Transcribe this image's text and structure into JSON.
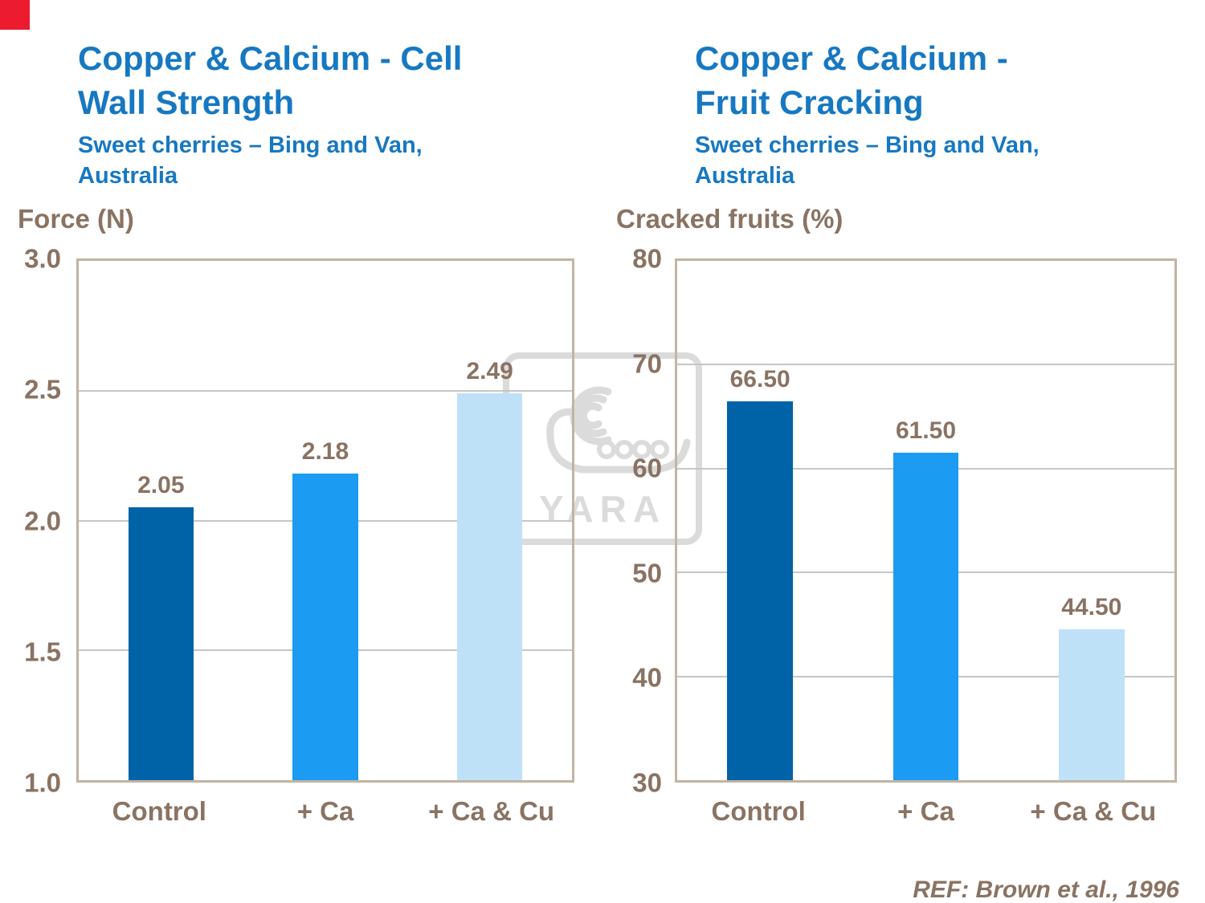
{
  "page": {
    "ref_text": "REF: Brown et al., 1996",
    "watermark_text": "YARA",
    "accent_red": "#ED1B2F",
    "title_color": "#1778C2",
    "text_color": "#8A7363"
  },
  "chart_data": [
    {
      "type": "bar",
      "title_line1": "Copper & Calcium - Cell",
      "title_line2": "Wall Strength",
      "subtitle_line1": "Sweet cherries – Bing and Van,",
      "subtitle_line2": "Australia",
      "axis_label": "Force (N)",
      "categories": [
        "Control",
        "+ Ca",
        "+ Ca & Cu"
      ],
      "values": [
        2.05,
        2.18,
        2.49
      ],
      "value_labels": [
        "2.05",
        "2.18",
        "2.49"
      ],
      "bar_colors": [
        "#0063A8",
        "#1B9BF2",
        "#BFE1F8"
      ],
      "ylim": [
        1.0,
        3.0
      ],
      "yticks": [
        1.0,
        1.5,
        2.0,
        2.5,
        3.0
      ],
      "ytick_labels": [
        "1.0",
        "1.5",
        "2.0",
        "2.5",
        "3.0"
      ],
      "gridlines": [
        1.5,
        2.0,
        2.5
      ],
      "xlabel": "",
      "ylabel": "Force (N)",
      "grid": "horizontal",
      "legend": "none"
    },
    {
      "type": "bar",
      "title_line1": "Copper & Calcium -",
      "title_line2": "Fruit Cracking",
      "subtitle_line1": "Sweet cherries – Bing and Van,",
      "subtitle_line2": "Australia",
      "axis_label": "Cracked fruits (%)",
      "categories": [
        "Control",
        "+ Ca",
        "+ Ca & Cu"
      ],
      "values": [
        66.5,
        61.5,
        44.5
      ],
      "value_labels": [
        "66.50",
        "61.50",
        "44.50"
      ],
      "bar_colors": [
        "#0063A8",
        "#1B9BF2",
        "#BFE1F8"
      ],
      "ylim": [
        30,
        80
      ],
      "yticks": [
        30,
        40,
        50,
        60,
        70,
        80
      ],
      "ytick_labels": [
        "30",
        "40",
        "50",
        "60",
        "70",
        "80"
      ],
      "gridlines": [
        40,
        50,
        60,
        70
      ],
      "xlabel": "",
      "ylabel": "Cracked fruits (%)",
      "grid": "horizontal",
      "legend": "none"
    }
  ]
}
